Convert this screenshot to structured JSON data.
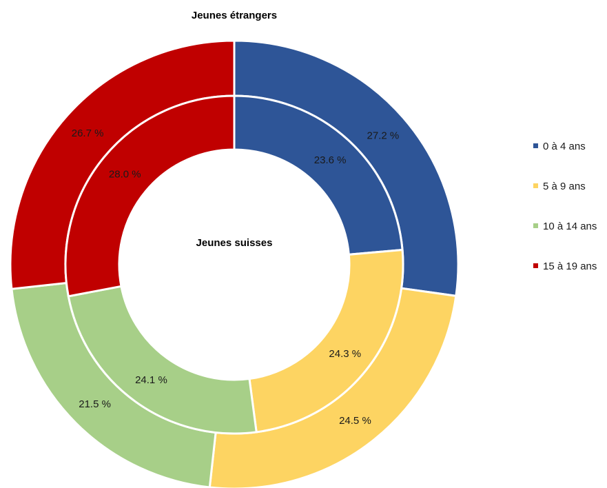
{
  "chart_data": {
    "type": "pie",
    "subtype": "nested-donut",
    "categories": [
      "0 à 4 ans",
      "5 à 9 ans",
      "10 à 14 ans",
      "15 à 19 ans"
    ],
    "colors": [
      "#2e5597",
      "#fdd462",
      "#a7cf88",
      "#c00000"
    ],
    "series": [
      {
        "name": "Jeunes étrangers",
        "ring": "outer",
        "values": [
          27.2,
          24.5,
          21.5,
          26.7
        ],
        "labels": [
          "27.2 %",
          "24.5 %",
          "21.5 %",
          "26.7 %"
        ]
      },
      {
        "name": "Jeunes suisses",
        "ring": "inner",
        "values": [
          23.6,
          24.3,
          24.1,
          28.0
        ],
        "labels": [
          "23.6 %",
          "24.3 %",
          "24.1 %",
          "28.0 %"
        ]
      }
    ],
    "legend": "right"
  }
}
